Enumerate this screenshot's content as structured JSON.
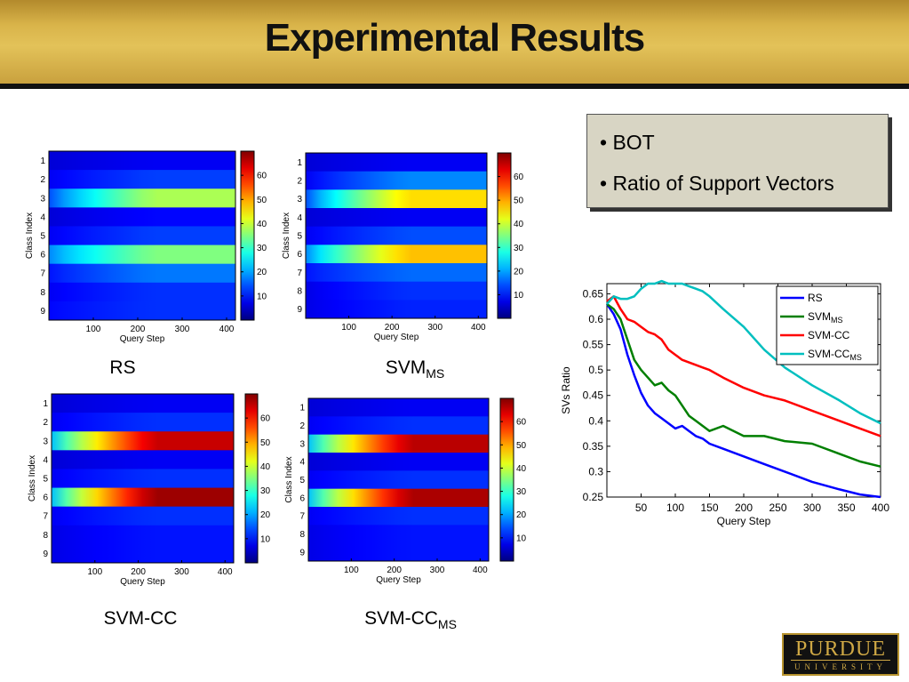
{
  "slide": {
    "title": "Experimental Results",
    "bullets": [
      "• BOT",
      "• Ratio of Support Vectors"
    ],
    "logo": {
      "word": "PURDUE",
      "sub": "UNIVERSITY"
    }
  },
  "colors": {
    "banner": "#d4ae45",
    "rs": "#0000ff",
    "svm_ms": "#007f00",
    "svm_cc": "#ff0000",
    "svm_cc_ms": "#00bfbf"
  },
  "chart_data": [
    {
      "type": "heatmap",
      "id": "rs",
      "caption": "RS",
      "caption_sub": "",
      "xlabel": "Query Step",
      "ylabel": "Class Index",
      "xticks": [
        100,
        200,
        300,
        400
      ],
      "yticks": [
        1,
        2,
        3,
        4,
        5,
        6,
        7,
        8,
        9
      ],
      "xlim": [
        0,
        420
      ],
      "colorbar_ticks": [
        10,
        20,
        30,
        40,
        50,
        60
      ],
      "clim": [
        0,
        70
      ],
      "rows": [
        {
          "class": 1,
          "start": 6,
          "end": 8
        },
        {
          "class": 2,
          "start": 8,
          "end": 13
        },
        {
          "class": 3,
          "start": 14,
          "end": 38
        },
        {
          "class": 4,
          "start": 6,
          "end": 9
        },
        {
          "class": 5,
          "start": 8,
          "end": 13
        },
        {
          "class": 6,
          "start": 18,
          "end": 35
        },
        {
          "class": 7,
          "start": 10,
          "end": 17
        },
        {
          "class": 8,
          "start": 8,
          "end": 12
        },
        {
          "class": 9,
          "start": 9,
          "end": 12
        }
      ]
    },
    {
      "type": "heatmap",
      "id": "svm_ms",
      "caption": "SVM",
      "caption_sub": "MS",
      "xlabel": "Query Step",
      "ylabel": "Class Index",
      "xticks": [
        100,
        200,
        300,
        400
      ],
      "yticks": [
        1,
        2,
        3,
        4,
        5,
        6,
        7,
        8,
        9
      ],
      "xlim": [
        0,
        420
      ],
      "colorbar_ticks": [
        10,
        20,
        30,
        40,
        50,
        60
      ],
      "clim": [
        0,
        70
      ],
      "rows": [
        {
          "class": 1,
          "start": 6,
          "end": 8
        },
        {
          "class": 2,
          "start": 8,
          "end": 18
        },
        {
          "class": 3,
          "start": 14,
          "end": 46
        },
        {
          "class": 4,
          "start": 6,
          "end": 8
        },
        {
          "class": 5,
          "start": 8,
          "end": 14
        },
        {
          "class": 6,
          "start": 18,
          "end": 48
        },
        {
          "class": 7,
          "start": 10,
          "end": 16
        },
        {
          "class": 8,
          "start": 7,
          "end": 12
        },
        {
          "class": 9,
          "start": 7,
          "end": 11
        }
      ]
    },
    {
      "type": "heatmap",
      "id": "svm_cc",
      "caption": "SVM-CC",
      "caption_sub": "",
      "xlabel": "Query Step",
      "ylabel": "Class Index",
      "xticks": [
        100,
        200,
        300,
        400
      ],
      "yticks": [
        1,
        2,
        3,
        4,
        5,
        6,
        7,
        8,
        9
      ],
      "xlim": [
        0,
        420
      ],
      "colorbar_ticks": [
        10,
        20,
        30,
        40,
        50,
        60
      ],
      "clim": [
        0,
        70
      ],
      "rows": [
        {
          "class": 1,
          "start": 6,
          "end": 8
        },
        {
          "class": 2,
          "start": 8,
          "end": 12
        },
        {
          "class": 3,
          "start": 22,
          "end": 65
        },
        {
          "class": 4,
          "start": 6,
          "end": 8
        },
        {
          "class": 5,
          "start": 8,
          "end": 12
        },
        {
          "class": 6,
          "start": 22,
          "end": 68
        },
        {
          "class": 7,
          "start": 8,
          "end": 12
        },
        {
          "class": 8,
          "start": 7,
          "end": 10
        },
        {
          "class": 9,
          "start": 7,
          "end": 10
        }
      ]
    },
    {
      "type": "heatmap",
      "id": "svm_cc_ms",
      "caption": "SVM-CC",
      "caption_sub": "MS",
      "xlabel": "Query Step",
      "ylabel": "Class Index",
      "xticks": [
        100,
        200,
        300,
        400
      ],
      "yticks": [
        1,
        2,
        3,
        4,
        5,
        6,
        7,
        8,
        9
      ],
      "xlim": [
        0,
        420
      ],
      "colorbar_ticks": [
        10,
        20,
        30,
        40,
        50,
        60
      ],
      "clim": [
        0,
        70
      ],
      "rows": [
        {
          "class": 1,
          "start": 6,
          "end": 8
        },
        {
          "class": 2,
          "start": 8,
          "end": 12
        },
        {
          "class": 3,
          "start": 22,
          "end": 66
        },
        {
          "class": 4,
          "start": 6,
          "end": 8
        },
        {
          "class": 5,
          "start": 8,
          "end": 12
        },
        {
          "class": 6,
          "start": 22,
          "end": 67
        },
        {
          "class": 7,
          "start": 8,
          "end": 12
        },
        {
          "class": 8,
          "start": 7,
          "end": 10
        },
        {
          "class": 9,
          "start": 7,
          "end": 10
        }
      ]
    },
    {
      "type": "line",
      "id": "svs_ratio",
      "xlabel": "Query Step",
      "ylabel": "SVs Ratio",
      "xlim": [
        0,
        400
      ],
      "ylim": [
        0.25,
        0.67
      ],
      "xticks": [
        50,
        100,
        150,
        200,
        250,
        300,
        350,
        400
      ],
      "yticks": [
        0.25,
        0.3,
        0.35,
        0.4,
        0.45,
        0.5,
        0.55,
        0.6,
        0.65
      ],
      "x": [
        0,
        10,
        20,
        30,
        40,
        50,
        60,
        70,
        80,
        90,
        100,
        110,
        120,
        130,
        140,
        150,
        170,
        200,
        230,
        260,
        300,
        340,
        370,
        400
      ],
      "legend_position": "top-right",
      "series": [
        {
          "key": "rs",
          "name": "RS",
          "sub": "",
          "values": [
            0.63,
            0.61,
            0.58,
            0.53,
            0.49,
            0.455,
            0.43,
            0.415,
            0.405,
            0.395,
            0.385,
            0.39,
            0.38,
            0.37,
            0.365,
            0.355,
            0.345,
            0.33,
            0.315,
            0.3,
            0.28,
            0.265,
            0.255,
            0.25
          ]
        },
        {
          "key": "svm_ms",
          "name": "SVM",
          "sub": "MS",
          "values": [
            0.63,
            0.62,
            0.6,
            0.56,
            0.52,
            0.5,
            0.485,
            0.47,
            0.475,
            0.46,
            0.45,
            0.43,
            0.41,
            0.4,
            0.39,
            0.38,
            0.39,
            0.37,
            0.37,
            0.36,
            0.355,
            0.335,
            0.32,
            0.31
          ]
        },
        {
          "key": "svm_cc",
          "name": "SVM-CC",
          "sub": "",
          "values": [
            0.635,
            0.645,
            0.62,
            0.6,
            0.595,
            0.585,
            0.575,
            0.57,
            0.56,
            0.54,
            0.53,
            0.52,
            0.515,
            0.51,
            0.505,
            0.5,
            0.485,
            0.465,
            0.45,
            0.44,
            0.42,
            0.4,
            0.385,
            0.37
          ]
        },
        {
          "key": "svm_cc_ms",
          "name": "SVM-CC",
          "sub": "MS",
          "values": [
            0.63,
            0.645,
            0.64,
            0.64,
            0.645,
            0.66,
            0.67,
            0.67,
            0.675,
            0.67,
            0.67,
            0.67,
            0.665,
            0.66,
            0.655,
            0.645,
            0.62,
            0.585,
            0.54,
            0.505,
            0.47,
            0.44,
            0.415,
            0.395
          ]
        }
      ]
    }
  ]
}
